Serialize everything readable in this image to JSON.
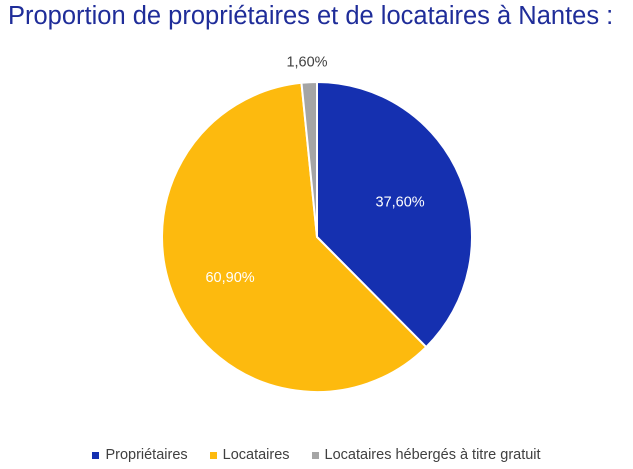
{
  "chart_data": {
    "type": "pie",
    "title": "Proportion de propriétaires et de locataires à Nantes :",
    "slices": [
      {
        "name": "Propriétaires",
        "value": 37.6,
        "label": "37,60%",
        "color": "#1530b0",
        "label_color": "#ffffff"
      },
      {
        "name": "Locataires",
        "value": 60.9,
        "label": "60,90%",
        "color": "#fdba0e",
        "label_color": "#ffffff"
      },
      {
        "name": "Locataires hébergés à titre gratuit",
        "value": 1.6,
        "label": "1,60%",
        "color": "#a5a5a5",
        "label_color": "#404040"
      }
    ],
    "legend_position": "bottom",
    "start_angle_deg": 0,
    "direction": "clockwise"
  }
}
